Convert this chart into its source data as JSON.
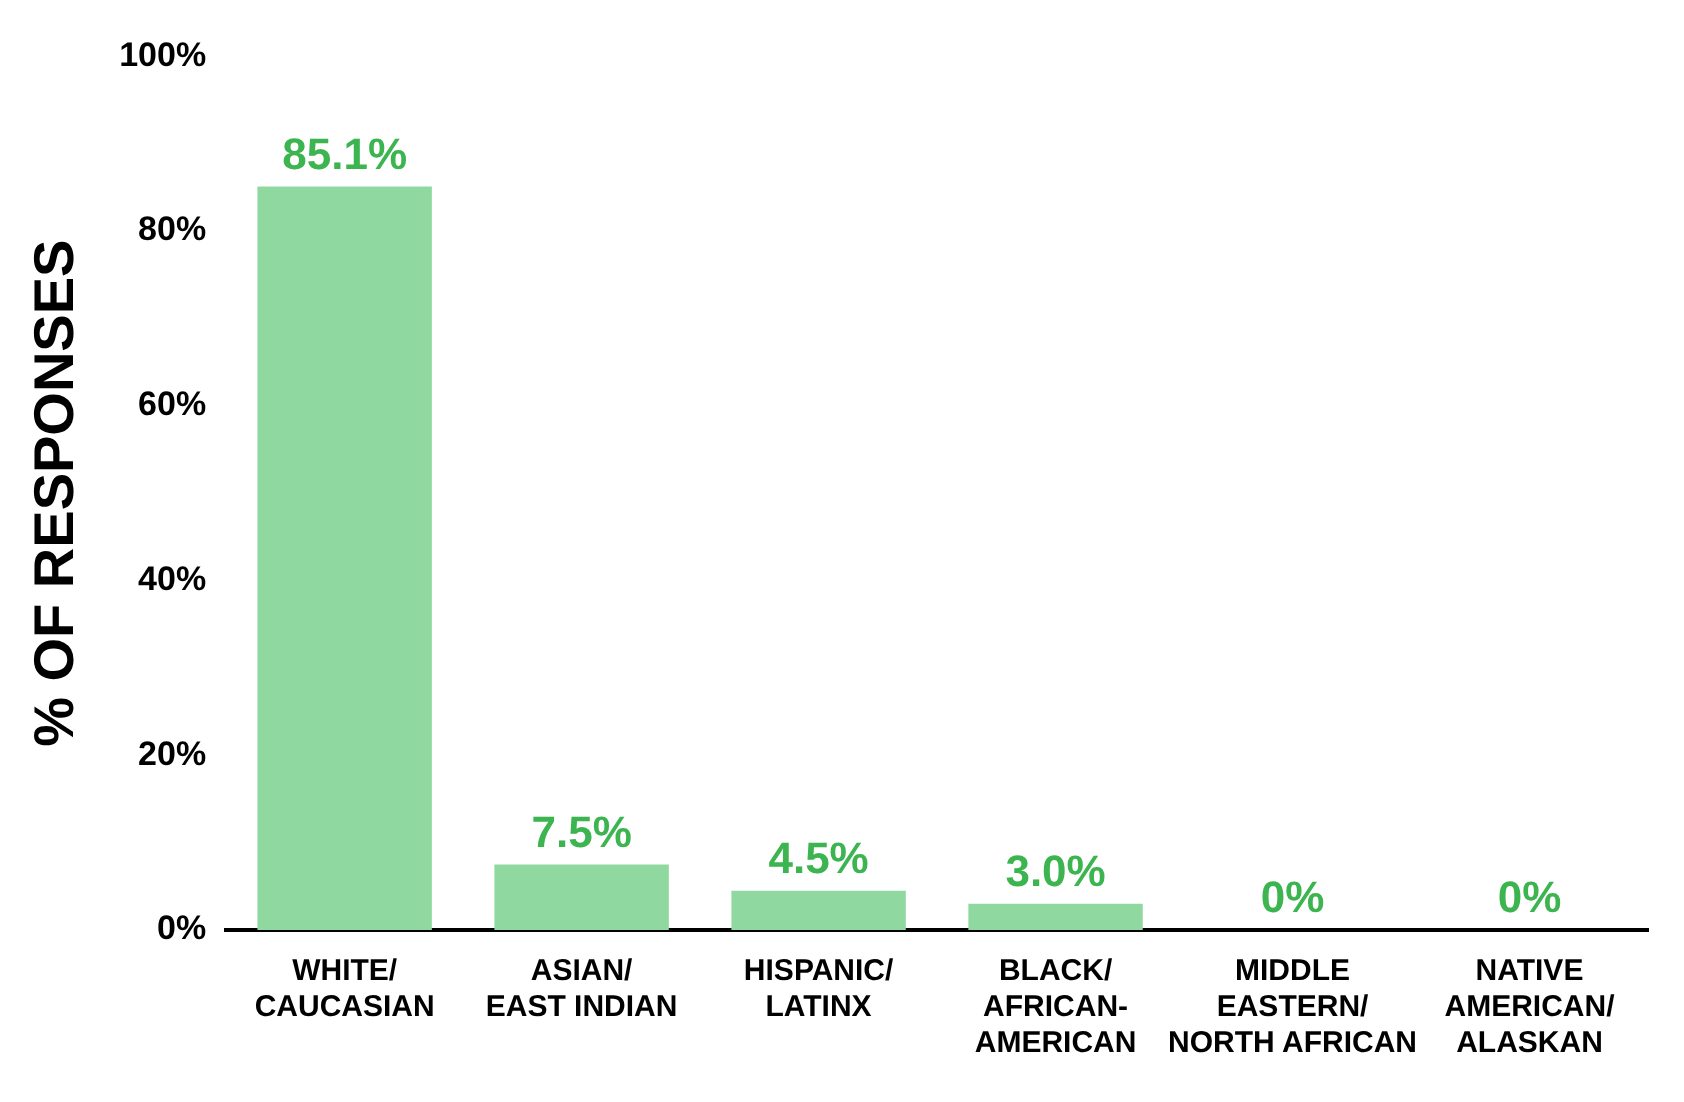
{
  "chart_data": {
    "type": "bar",
    "ylabel": "% OF RESPONSES",
    "categories": [
      "WHITE/\nCAUCASIAN",
      "ASIAN/\nEAST INDIAN",
      "HISPANIC/\nLATINX",
      "BLACK/\nAFRICAN-\nAMERICAN",
      "MIDDLE\nEASTERN/\nNORTH AFRICAN",
      "NATIVE\nAMERICAN/\nALASKAN"
    ],
    "values": [
      85.1,
      7.5,
      4.5,
      3.0,
      0,
      0
    ],
    "value_labels": [
      "85.1%",
      "7.5%",
      "4.5%",
      "3.0%",
      "0%",
      "0%"
    ],
    "color": "#8fd9a0",
    "ylim": [
      0,
      100
    ],
    "yticks": [
      {
        "value": 0,
        "label": "0%"
      },
      {
        "value": 20,
        "label": "20%"
      },
      {
        "value": 40,
        "label": "40%"
      },
      {
        "value": 60,
        "label": "60%"
      },
      {
        "value": 80,
        "label": "80%"
      },
      {
        "value": 100,
        "label": "100%"
      }
    ],
    "grid": false,
    "legend": false
  }
}
